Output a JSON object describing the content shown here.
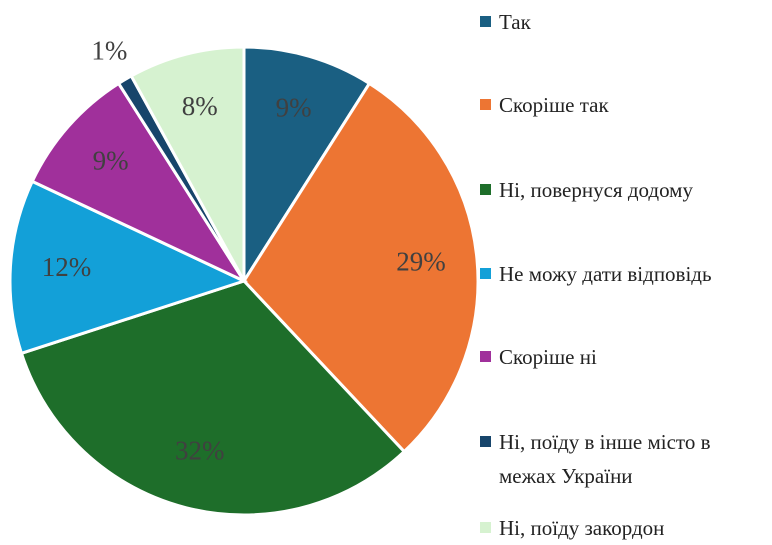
{
  "chart_data": {
    "type": "pie",
    "categories": [
      "Так",
      "Скоріше так",
      "Ні, повернуся додому",
      "Не можу дати відповідь",
      "Скоріше ні",
      "Ні, поїду в інше місто в межах України",
      "Ні, поїду закордон"
    ],
    "values": [
      9,
      29,
      32,
      12,
      9,
      1,
      8
    ],
    "value_labels": [
      "9%",
      "29%",
      "32%",
      "12%",
      "9%",
      "1%",
      "8%"
    ],
    "colors": [
      "#1a5f82",
      "#ed7533",
      "#1e6e2a",
      "#13a0d8",
      "#a0309b",
      "#17456b",
      "#d6f2d0"
    ],
    "legend": "right"
  }
}
